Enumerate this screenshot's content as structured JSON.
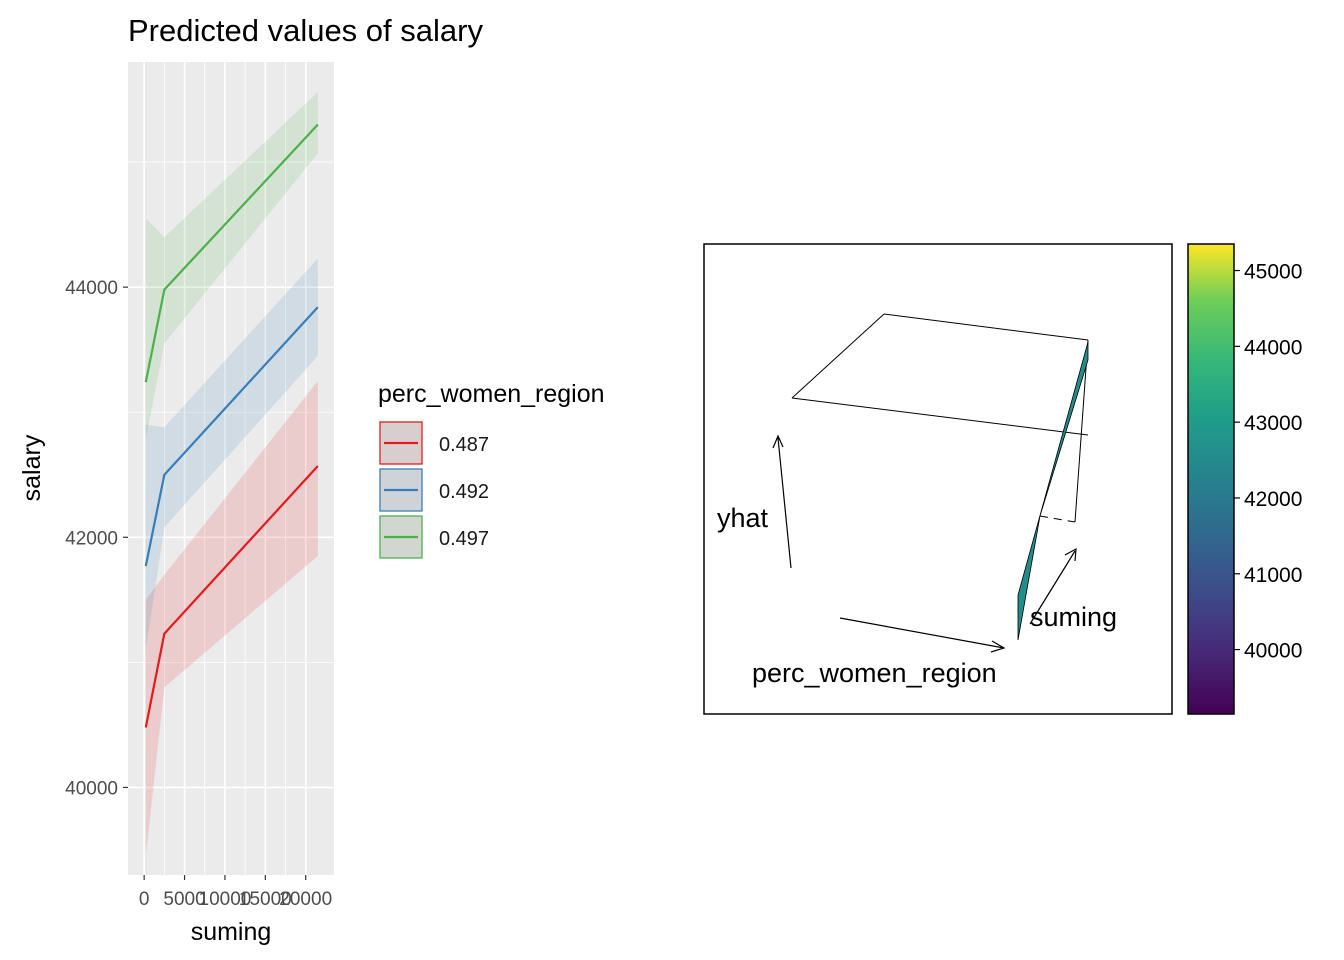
{
  "chart_data": [
    {
      "type": "line",
      "title": "Predicted values of salary",
      "xlabel": "suming",
      "ylabel": "salary",
      "xlim": [
        -2000,
        23500
      ],
      "ylim": [
        39300,
        45800
      ],
      "x_ticks": [
        0,
        5000,
        10000,
        15000,
        20000
      ],
      "x_tick_labels": [
        "0",
        "5000",
        "10000",
        "15000",
        "20000"
      ],
      "y_ticks": [
        40000,
        42000,
        44000
      ],
      "y_tick_labels": [
        "40000",
        "42000",
        "44000"
      ],
      "grid": true,
      "legend": {
        "title": "perc_women_region",
        "placement": "right"
      },
      "series": [
        {
          "name": "0.487",
          "color": "#e41a1c",
          "x": [
            200,
            2500,
            21500
          ],
          "y": [
            40480,
            41230,
            42570
          ],
          "lower": [
            39450,
            40800,
            41850
          ],
          "upper": [
            41500,
            41700,
            43250
          ]
        },
        {
          "name": "0.492",
          "color": "#377eb8",
          "x": [
            200,
            2500,
            21500
          ],
          "y": [
            41770,
            42500,
            43840
          ],
          "lower": [
            41100,
            42080,
            43450
          ],
          "upper": [
            42900,
            42880,
            44230
          ]
        },
        {
          "name": "0.497",
          "color": "#4daf4a",
          "x": [
            200,
            2500,
            21500
          ],
          "y": [
            43240,
            43980,
            45300
          ],
          "lower": [
            42780,
            43550,
            45070
          ],
          "upper": [
            44550,
            44400,
            45560
          ]
        }
      ]
    },
    {
      "type": "surface",
      "xlabel": "perc_women_region",
      "ylabel": "suming",
      "zlabel": "yhat",
      "colorbar": {
        "range": [
          39150,
          45350
        ],
        "ticks": [
          40000,
          41000,
          42000,
          43000,
          44000,
          45000
        ],
        "tick_labels": [
          "40000",
          "41000",
          "42000",
          "43000",
          "44000",
          "45000"
        ],
        "colormap": "viridis"
      }
    }
  ]
}
